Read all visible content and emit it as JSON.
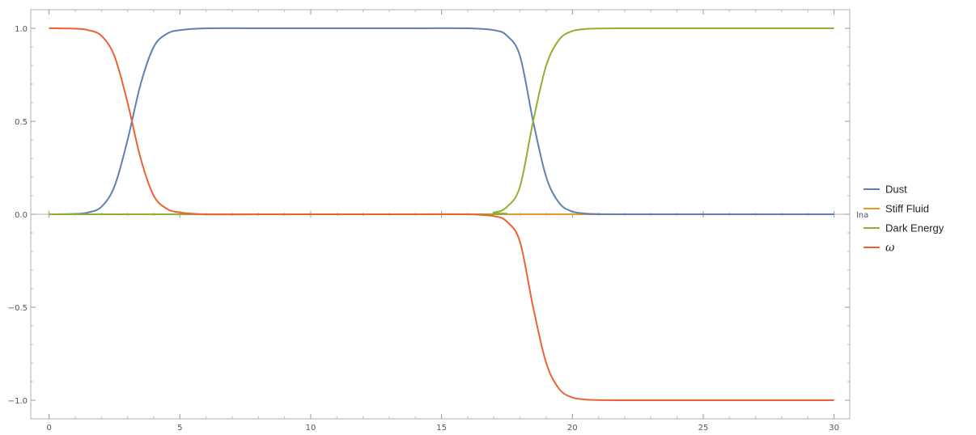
{
  "chart_data": {
    "type": "line",
    "title": "",
    "xlabel": "lna",
    "ylabel": "",
    "xlim": [
      -0.7,
      30.6
    ],
    "ylim": [
      -1.1,
      1.1
    ],
    "grid": false,
    "legend_position": "right",
    "x_ticks": [
      0,
      5,
      10,
      15,
      20,
      25,
      30
    ],
    "x_tick_labels": [
      "0",
      "5",
      "10",
      "15",
      "20",
      "25",
      "30"
    ],
    "y_ticks": [
      1.0,
      0.5,
      0.0,
      -0.5,
      -1.0
    ],
    "y_tick_labels": [
      "1.0",
      "0.5",
      "0.0",
      "-0.5",
      "-1.0"
    ],
    "series": [
      {
        "name": "Dust",
        "color": "#5e81b5",
        "x": [
          0,
          1,
          1.5,
          2,
          2.5,
          3,
          3.5,
          4,
          4.5,
          5,
          6,
          8,
          10,
          12,
          14,
          16,
          17,
          17.5,
          18,
          18.5,
          19,
          19.5,
          20,
          20.5,
          21,
          22,
          25,
          30
        ],
        "y": [
          0,
          0.002,
          0.01,
          0.04,
          0.15,
          0.4,
          0.7,
          0.9,
          0.97,
          0.99,
          1.0,
          1.0,
          1.0,
          1.0,
          1.0,
          1.0,
          0.99,
          0.96,
          0.85,
          0.5,
          0.2,
          0.06,
          0.015,
          0.004,
          0.001,
          0,
          0,
          0
        ]
      },
      {
        "name": "Stiff Fluid",
        "color": "#e19c24",
        "x": [
          0,
          30
        ],
        "y": [
          0,
          0
        ]
      },
      {
        "name": "Dark Energy",
        "color": "#8fb032",
        "x": [
          0,
          16,
          17,
          17.5,
          18,
          18.5,
          19,
          19.5,
          20,
          20.5,
          21,
          22,
          25,
          30
        ],
        "y": [
          0,
          0,
          0.01,
          0.04,
          0.15,
          0.5,
          0.8,
          0.94,
          0.985,
          0.996,
          0.999,
          1.0,
          1.0,
          1.0
        ]
      },
      {
        "name": "ω",
        "color": "#eb6235",
        "x": [
          0,
          1,
          1.5,
          2,
          2.5,
          3,
          3.5,
          4,
          4.5,
          5,
          6,
          8,
          10,
          12,
          14,
          16,
          17,
          17.5,
          18,
          18.5,
          19,
          19.5,
          20,
          20.5,
          21,
          22,
          25,
          30
        ],
        "y": [
          1.0,
          0.998,
          0.99,
          0.96,
          0.85,
          0.6,
          0.3,
          0.1,
          0.03,
          0.01,
          0,
          0,
          0,
          0,
          0,
          0,
          -0.01,
          -0.04,
          -0.15,
          -0.5,
          -0.8,
          -0.94,
          -0.985,
          -0.996,
          -0.999,
          -1.0,
          -1.0,
          -1.0
        ]
      }
    ]
  }
}
